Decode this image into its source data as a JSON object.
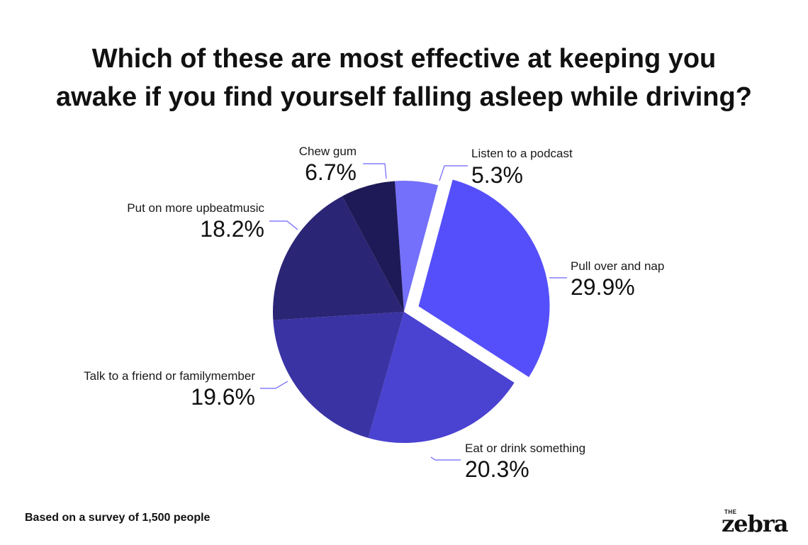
{
  "chart_data": {
    "type": "pie",
    "title_lines": [
      "Which of these are most effective at keeping you",
      "awake if you find yourself falling asleep while driving?"
    ],
    "slices": [
      {
        "label": "Listen to a podcast",
        "value": 5.3,
        "value_text": "5.3%",
        "color": "#7470fb",
        "exploded": false
      },
      {
        "label": "Pull over and nap",
        "value": 29.9,
        "value_text": "29.9%",
        "color": "#554ffb",
        "exploded": true
      },
      {
        "label": "Eat or drink something",
        "value": 20.3,
        "value_text": "20.3%",
        "color": "#4a42d0",
        "exploded": false
      },
      {
        "label": "Talk to a friend or familymember",
        "value": 19.6,
        "value_text": "19.6%",
        "color": "#3a33a4",
        "exploded": false
      },
      {
        "label": "Put on more upbeatmusic",
        "value": 18.2,
        "value_text": "18.2%",
        "color": "#2b2575",
        "exploded": false
      },
      {
        "label": "Chew gum",
        "value": 6.7,
        "value_text": "6.7%",
        "color": "#1e1a57",
        "exploded": false
      }
    ],
    "leader_line_color": "#6c63ff"
  },
  "footnote": "Based on a survey of 1,500 people",
  "brand": {
    "top": "THE",
    "name": "zebra"
  }
}
